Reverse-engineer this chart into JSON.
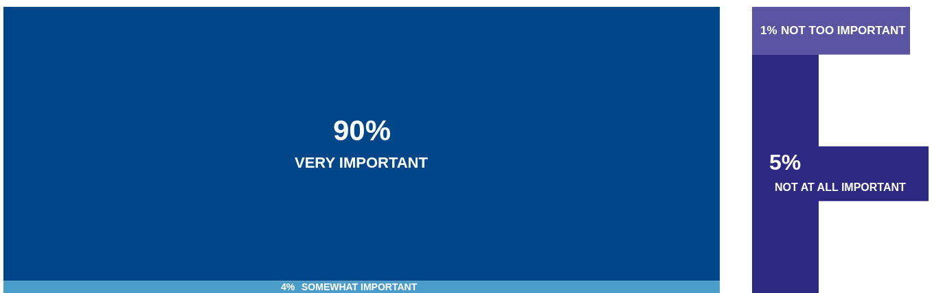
{
  "chart_data": {
    "type": "other",
    "categories": [
      "VERY IMPORTANT",
      "SOMEWHAT IMPORTANT",
      "NOT TOO IMPORTANT",
      "NOT AT ALL IMPORTANT"
    ],
    "values": [
      90,
      4,
      1,
      5
    ],
    "value_labels": [
      "90%",
      "4%",
      "1%",
      "5%"
    ],
    "colors": [
      "#00478a",
      "#4a9cc9",
      "#5b54a3",
      "#2e2a84"
    ]
  }
}
